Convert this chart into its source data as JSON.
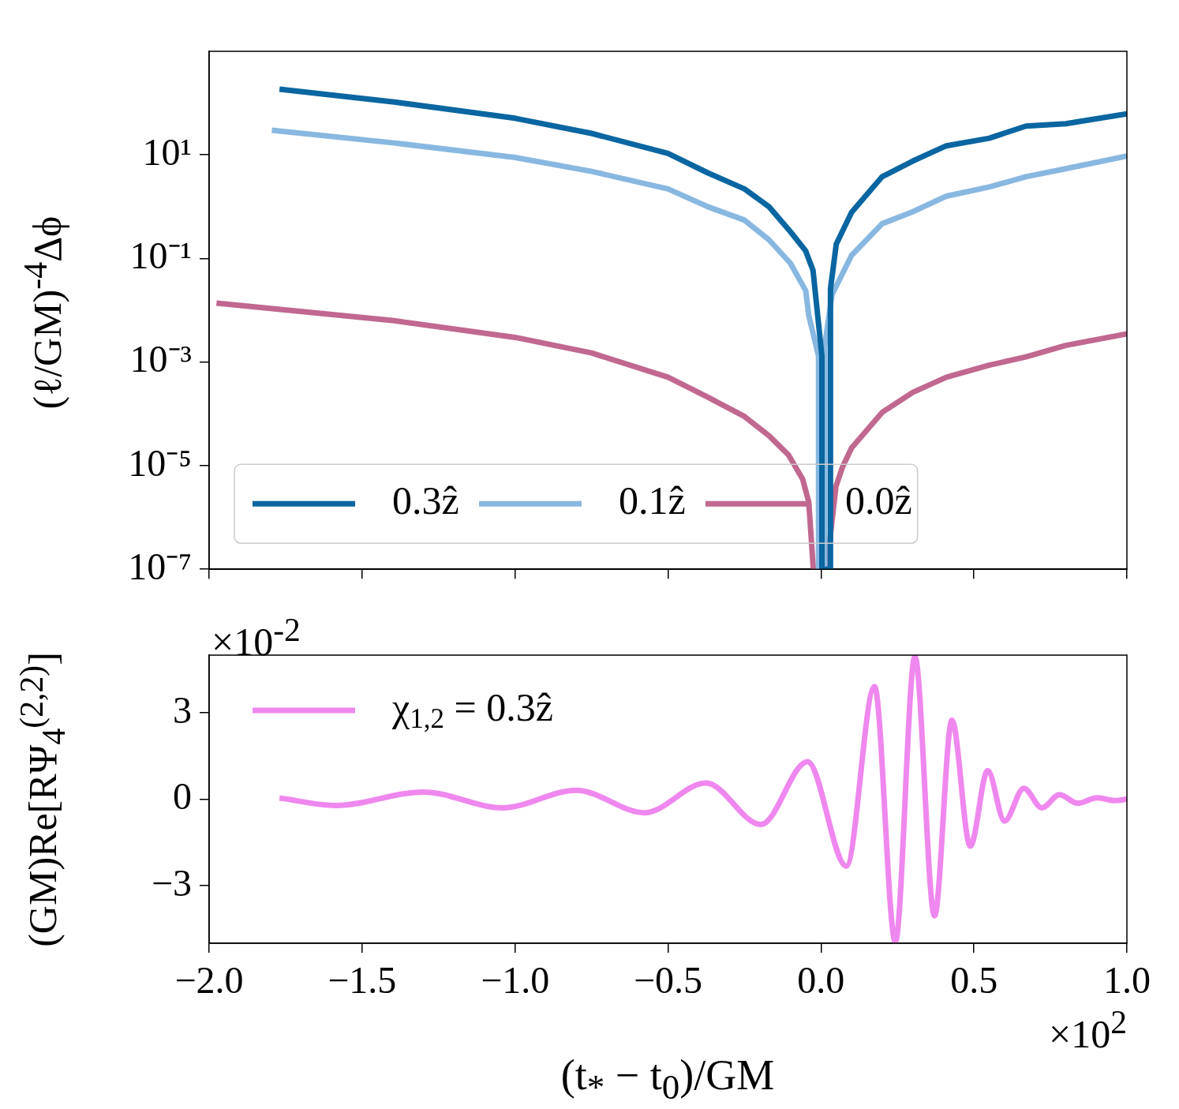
{
  "chart_data": [
    {
      "type": "line",
      "ylabel": "(ℓ/GM)$^{-4}$Δϕ",
      "log": "y",
      "xlim": [
        -2,
        1
      ],
      "xticks": [
        -2,
        -1.5,
        -1,
        -0.5,
        0,
        0.5,
        1
      ],
      "ylim": [
        1e-07,
        1000
      ],
      "yticks": [
        {
          "value": 1e-07,
          "label": "10⁻⁷"
        },
        {
          "value": 1e-05,
          "label": "10⁻⁵"
        },
        {
          "value": 0.001,
          "label": "10⁻³"
        },
        {
          "value": 0.1,
          "label": "10⁻¹"
        },
        {
          "value": 10,
          "label": "10¹"
        }
      ],
      "tick_labels": "y",
      "grid": false,
      "legend": "lower left",
      "marker": "none",
      "line_style": "solid",
      "series": [
        {
          "name": "0.3ẑ",
          "color": "#0a66a0",
          "x": [
            -1.77,
            -1.395,
            -1.0,
            -0.75,
            -0.5,
            -0.37,
            -0.25,
            -0.17,
            -0.1,
            -0.05,
            -0.026,
            0.003,
            0.003,
            0.031,
            0.031,
            0.05,
            0.1,
            0.2,
            0.3,
            0.41,
            0.55,
            0.67,
            0.8,
            1.0
          ],
          "values": [
            186,
            105,
            51,
            26,
            10.7,
            4.5,
            2.2,
            1.0,
            0.33,
            0.14,
            0.059,
            0.0013,
            1e-07,
            1e-07,
            0.026,
            0.19,
            0.78,
            3.8,
            7.6,
            15,
            21,
            36,
            40,
            62
          ]
        },
        {
          "name": "0.1ẑ",
          "color": "#88b8e0",
          "x": [
            -1.795,
            -1.395,
            -1.0,
            -0.75,
            -0.5,
            -0.37,
            -0.25,
            -0.17,
            -0.1,
            -0.05,
            -0.04,
            -0.008,
            -0.008,
            0.012,
            0.012,
            0.036,
            0.1,
            0.2,
            0.3,
            0.41,
            0.55,
            0.67,
            0.8,
            1.0
          ],
          "values": [
            30,
            17,
            8.9,
            4.8,
            2.2,
            1.0,
            0.55,
            0.23,
            0.081,
            0.024,
            0.008,
            0.0013,
            1e-07,
            1e-07,
            0.002,
            0.02,
            0.115,
            0.47,
            0.8,
            1.6,
            2.4,
            3.8,
            5.4,
            9.5
          ]
        },
        {
          "name": "0.0ẑ",
          "color": "#c06890",
          "x": [
            -1.976,
            -1.395,
            -1.0,
            -0.75,
            -0.5,
            -0.37,
            -0.25,
            -0.17,
            -0.106,
            -0.06,
            -0.04,
            -0.025,
            0.018,
            0.049,
            0.07,
            0.1,
            0.2,
            0.3,
            0.41,
            0.55,
            0.67,
            0.8,
            1.0
          ],
          "values": [
            0.0138,
            0.0063,
            0.003,
            0.0015,
            0.00051,
            0.00021,
            8.9e-05,
            3.8e-05,
            1.6e-05,
            5.5e-06,
            2e-06,
            1e-07,
            1e-07,
            4e-06,
            9.3e-06,
            2.2e-05,
            0.000107,
            0.00026,
            0.00051,
            0.00087,
            0.00126,
            0.0021,
            0.0035
          ]
        }
      ]
    },
    {
      "type": "line",
      "xlabel": "(t$_{*}$ − t$_{0}$)/GM",
      "ylabel": "(GM)Re[RΨ$_{4}$$^{(2,2)}$]",
      "annotations": [
        "×10$^{-2}$",
        "×10$^{2}$"
      ],
      "xlim": [
        -2,
        1
      ],
      "xticks": [
        {
          "value": -2,
          "label": "−2.0"
        },
        {
          "value": -1.5,
          "label": "−1.5"
        },
        {
          "value": -1,
          "label": "−1.0"
        },
        {
          "value": -0.5,
          "label": "−0.5"
        },
        {
          "value": 0,
          "label": "0.0"
        },
        {
          "value": 0.5,
          "label": "0.5"
        },
        {
          "value": 1,
          "label": "1.0"
        }
      ],
      "ylim": [
        -5,
        5
      ],
      "yticks": [
        {
          "value": -3,
          "label": "−3"
        },
        0,
        3
      ],
      "grid": false,
      "legend": "upper left",
      "marker": "none",
      "line_style": "solid",
      "series": [
        {
          "name": "χ$_{1,2}$ = 0.3ẑ",
          "color": "#ee88ee",
          "x": [
            -1.77,
            -1.585,
            -1.3,
            -1.04,
            -0.8,
            -0.576,
            -0.376,
            -0.196,
            -0.044,
            0.083,
            0.175,
            0.243,
            0.307,
            0.371,
            0.428,
            0.488,
            0.545,
            0.6,
            0.663,
            0.722,
            0.78,
            0.838,
            0.903,
            0.96,
            1.0
          ],
          "values": [
            0.04,
            -0.22,
            0.25,
            -0.3,
            0.31,
            -0.47,
            0.56,
            -0.88,
            1.3,
            -2.32,
            3.91,
            -4.95,
            4.95,
            -4.05,
            2.74,
            -1.63,
            0.99,
            -0.76,
            0.38,
            -0.3,
            0.16,
            -0.14,
            0.05,
            -0.05,
            0
          ]
        }
      ]
    }
  ]
}
